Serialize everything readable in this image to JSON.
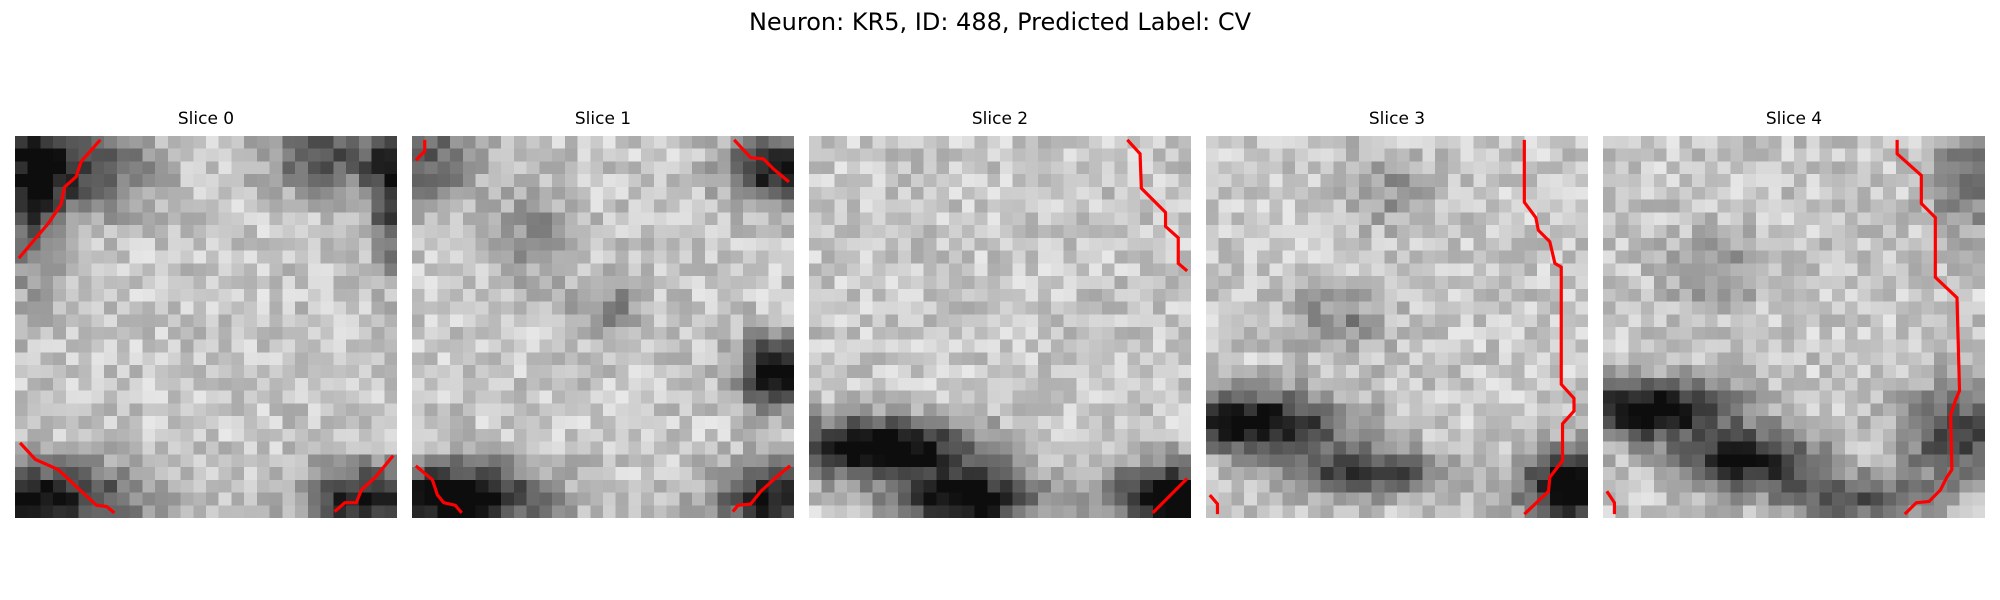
{
  "figure": {
    "suptitle": "Neuron: KR5, ID: 488, Predicted Label: CV",
    "contour_color": "#ff0000",
    "grid_size": 30,
    "panels": [
      {
        "title": "Slice 0"
      },
      {
        "title": "Slice 1"
      },
      {
        "title": "Slice 2"
      },
      {
        "title": "Slice 3"
      },
      {
        "title": "Slice 4"
      }
    ]
  }
}
